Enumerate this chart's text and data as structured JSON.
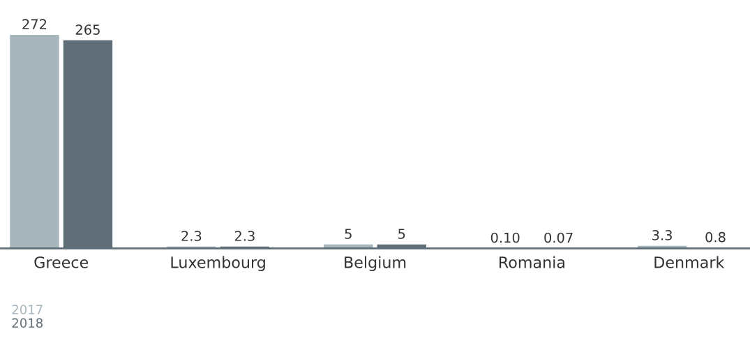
{
  "chart_data": {
    "type": "bar",
    "categories": [
      "Greece",
      "Luxembourg",
      "Belgium",
      "Romania",
      "Denmark"
    ],
    "series": [
      {
        "name": "2017",
        "color": "#a6b4bc",
        "values": [
          272,
          2.3,
          5,
          0.1,
          3.3
        ],
        "value_labels": [
          "272",
          "2.3",
          "5",
          "0.10",
          "3.3"
        ]
      },
      {
        "name": "2018",
        "color": "#5f6e77",
        "values": [
          265,
          2.3,
          5,
          0.07,
          0.8
        ],
        "value_labels": [
          "265",
          "2.3",
          "5",
          "0.07",
          "0.8"
        ]
      }
    ],
    "legend": "bottom left",
    "grid": false
  }
}
